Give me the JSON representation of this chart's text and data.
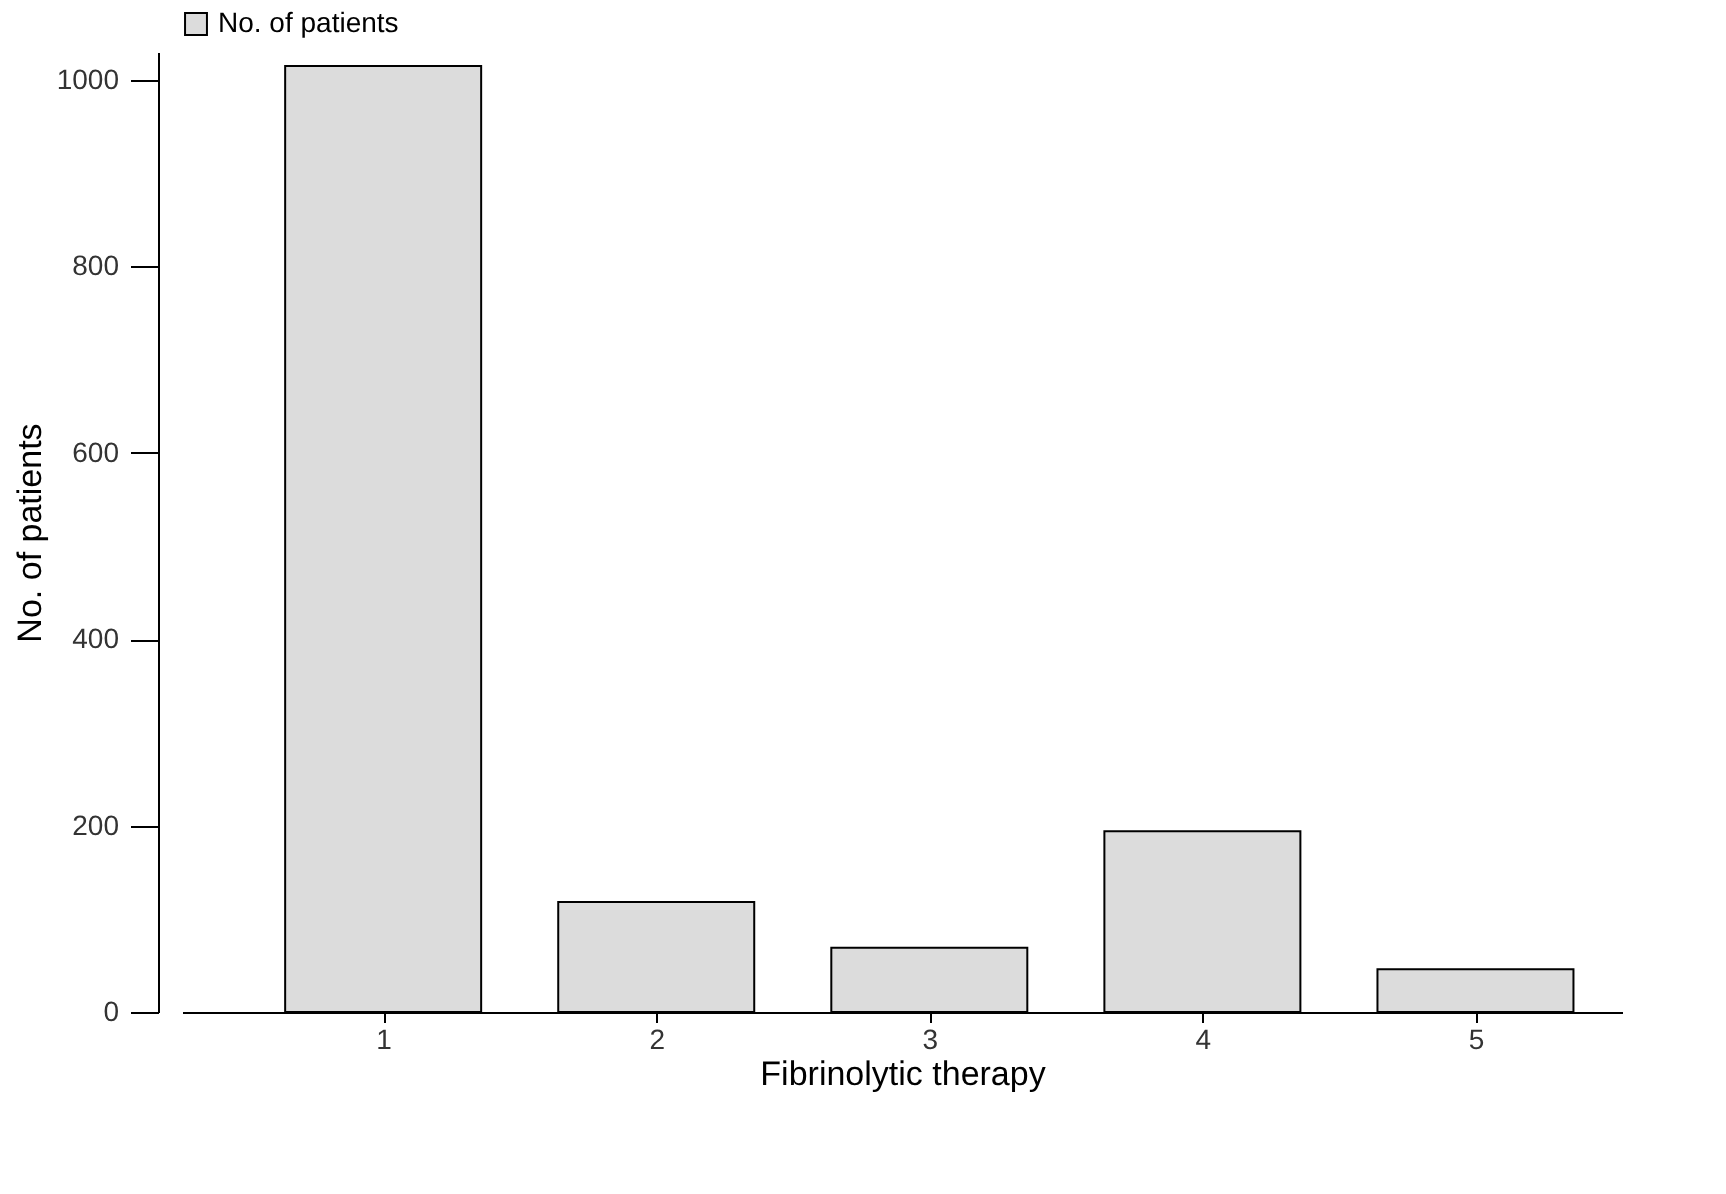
{
  "chart_data": {
    "type": "bar",
    "xlabel": "Fibrinolytic therapy",
    "ylabel": "No. of patients",
    "categories": [
      "1",
      "2",
      "3",
      "4",
      "5"
    ],
    "series": [
      {
        "name": "No. of patients",
        "color": "#dcdcdc",
        "values": [
          1015,
          118,
          69,
          194,
          46
        ]
      }
    ],
    "ylim": [
      0,
      1030
    ],
    "yticks": [
      0,
      200,
      400,
      600,
      800,
      1000
    ],
    "grid": false,
    "legend": "top left"
  }
}
